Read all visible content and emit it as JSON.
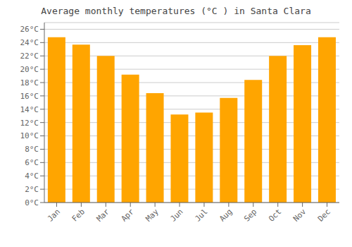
{
  "chart_data": {
    "type": "bar",
    "title": "Average monthly temperatures (°C ) in Santa Clara",
    "categories": [
      "Jan",
      "Feb",
      "Mar",
      "Apr",
      "May",
      "Jun",
      "Jul",
      "Aug",
      "Sep",
      "Oct",
      "Nov",
      "Dec"
    ],
    "values": [
      24.8,
      23.7,
      22.0,
      19.2,
      16.4,
      13.2,
      13.5,
      15.7,
      18.4,
      22.0,
      23.6,
      24.8
    ],
    "color": "#FFA500",
    "ylim": [
      0,
      27
    ],
    "yticks": [
      {
        "value": 0,
        "label": "0°C"
      },
      {
        "value": 2,
        "label": "2°C"
      },
      {
        "value": 4,
        "label": "4°C"
      },
      {
        "value": 6,
        "label": "6°C"
      },
      {
        "value": 8,
        "label": "8°C"
      },
      {
        "value": 10,
        "label": "10°C"
      },
      {
        "value": 12,
        "label": "12°C"
      },
      {
        "value": 14,
        "label": "14°C"
      },
      {
        "value": 16,
        "label": "16°C"
      },
      {
        "value": 18,
        "label": "18°C"
      },
      {
        "value": 20,
        "label": "20°C"
      },
      {
        "value": 22,
        "label": "22°C"
      },
      {
        "value": 24,
        "label": "24°C"
      },
      {
        "value": 26,
        "label": "26°C"
      }
    ],
    "grid": true
  }
}
